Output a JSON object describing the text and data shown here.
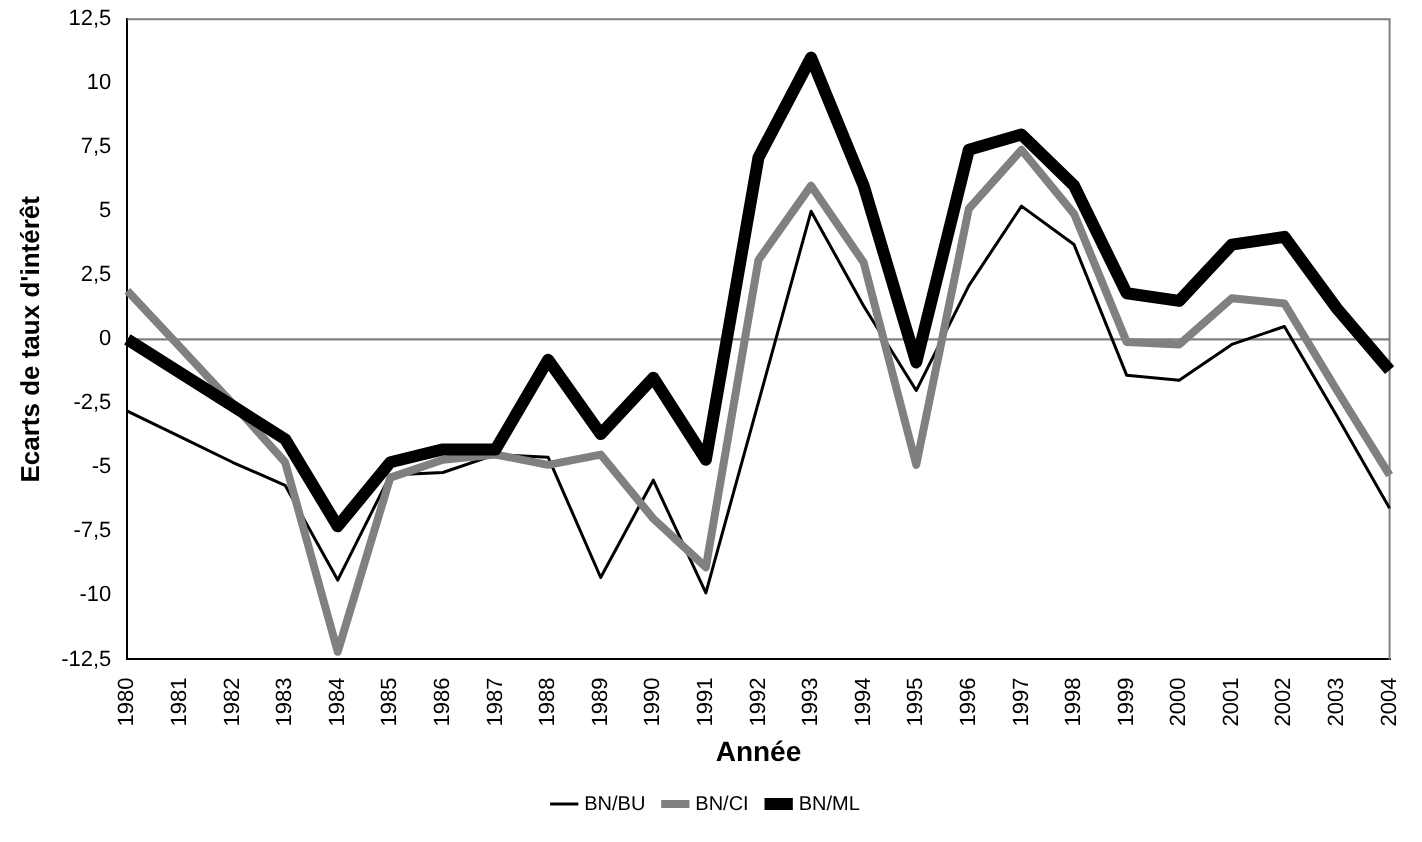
{
  "chart_data": {
    "type": "line",
    "xlabel": "Année",
    "ylabel": "Ecarts de taux d'intérêt",
    "categories": [
      "1980",
      "1981",
      "1982",
      "1983",
      "1984",
      "1985",
      "1986",
      "1987",
      "1988",
      "1989",
      "1990",
      "1991",
      "1992",
      "1993",
      "1994",
      "1995",
      "1996",
      "1997",
      "1998",
      "1999",
      "2000",
      "2001",
      "2002",
      "2003",
      "2004"
    ],
    "series": [
      {
        "name": "BN/BU",
        "color": "#000000",
        "values": [
          -2.8,
          -3.8,
          -4.8,
          -5.7,
          -9.4,
          -5.3,
          -5.2,
          -4.5,
          -4.6,
          -9.3,
          -5.5,
          -9.9,
          null,
          5.0,
          1.3,
          -2.0,
          2.1,
          5.2,
          3.7,
          -1.4,
          -1.6,
          -0.2,
          0.5,
          -3.0,
          -6.6
        ]
      },
      {
        "name": "BN/CI",
        "color": "#808080",
        "values": [
          1.9,
          -0.3,
          -2.5,
          -4.8,
          -12.2,
          -5.4,
          -4.7,
          -4.5,
          -4.9,
          -4.5,
          -7.0,
          -8.9,
          3.1,
          6.0,
          3.0,
          -4.9,
          5.1,
          7.4,
          4.9,
          -0.1,
          -0.2,
          1.6,
          1.4,
          -2.0,
          -5.3
        ]
      },
      {
        "name": "BN/ML",
        "color": "#000000",
        "values": [
          0,
          -1.3,
          -2.6,
          -3.9,
          -7.3,
          -4.8,
          -4.3,
          -4.3,
          -0.8,
          -3.7,
          -1.5,
          -4.7,
          7.1,
          11.0,
          6.0,
          -0.9,
          7.4,
          8.0,
          6.0,
          1.8,
          1.5,
          3.7,
          4.0,
          1.2,
          -1.2
        ]
      }
    ],
    "ylim": [
      -12.5,
      12.5
    ],
    "yticks": [
      {
        "value": -12.5,
        "label": "-12,5"
      },
      {
        "value": -10,
        "label": "-10"
      },
      {
        "value": -7.5,
        "label": "-7,5"
      },
      {
        "value": -5,
        "label": "-5"
      },
      {
        "value": -2.5,
        "label": "-2,5"
      },
      {
        "value": 0,
        "label": "0"
      },
      {
        "value": 2.5,
        "label": "2,5"
      },
      {
        "value": 5,
        "label": "5"
      },
      {
        "value": 7.5,
        "label": "7,5"
      },
      {
        "value": 10,
        "label": "10"
      },
      {
        "value": 12.5,
        "label": "12,5"
      }
    ],
    "ref_lines": [
      {
        "axis": "y",
        "value": 0,
        "color": "#808080"
      }
    ],
    "grid": false,
    "legend": "bottom",
    "marker": "none",
    "line_style": "solid"
  }
}
